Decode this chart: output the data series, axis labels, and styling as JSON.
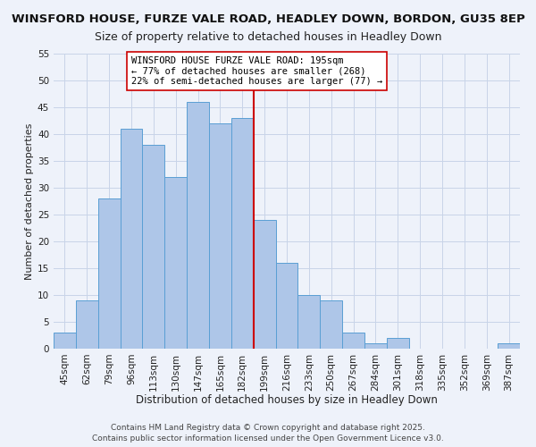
{
  "title": "WINSFORD HOUSE, FURZE VALE ROAD, HEADLEY DOWN, BORDON, GU35 8EP",
  "subtitle": "Size of property relative to detached houses in Headley Down",
  "xlabel": "Distribution of detached houses by size in Headley Down",
  "ylabel": "Number of detached properties",
  "bar_labels": [
    "45sqm",
    "62sqm",
    "79sqm",
    "96sqm",
    "113sqm",
    "130sqm",
    "147sqm",
    "165sqm",
    "182sqm",
    "199sqm",
    "216sqm",
    "233sqm",
    "250sqm",
    "267sqm",
    "284sqm",
    "301sqm",
    "318sqm",
    "335sqm",
    "352sqm",
    "369sqm",
    "387sqm"
  ],
  "bar_values": [
    3,
    9,
    28,
    41,
    38,
    32,
    46,
    42,
    43,
    24,
    16,
    10,
    9,
    3,
    1,
    2,
    0,
    0,
    0,
    0,
    1
  ],
  "bar_color": "#aec6e8",
  "bar_edge_color": "#5a9fd4",
  "vline_index": 8.5,
  "annotation_line1": "WINSFORD HOUSE FURZE VALE ROAD: 195sqm",
  "annotation_line2": "← 77% of detached houses are smaller (268)",
  "annotation_line3": "22% of semi-detached houses are larger (77) →",
  "vline_color": "#cc0000",
  "ylim": [
    0,
    55
  ],
  "yticks": [
    0,
    5,
    10,
    15,
    20,
    25,
    30,
    35,
    40,
    45,
    50,
    55
  ],
  "grid_color": "#c8d4e8",
  "background_color": "#eef2fa",
  "footer1": "Contains HM Land Registry data © Crown copyright and database right 2025.",
  "footer2": "Contains public sector information licensed under the Open Government Licence v3.0.",
  "title_fontsize": 9.5,
  "subtitle_fontsize": 9,
  "xlabel_fontsize": 8.5,
  "ylabel_fontsize": 8,
  "tick_fontsize": 7.5,
  "annotation_fontsize": 7.5,
  "footer_fontsize": 6.5
}
